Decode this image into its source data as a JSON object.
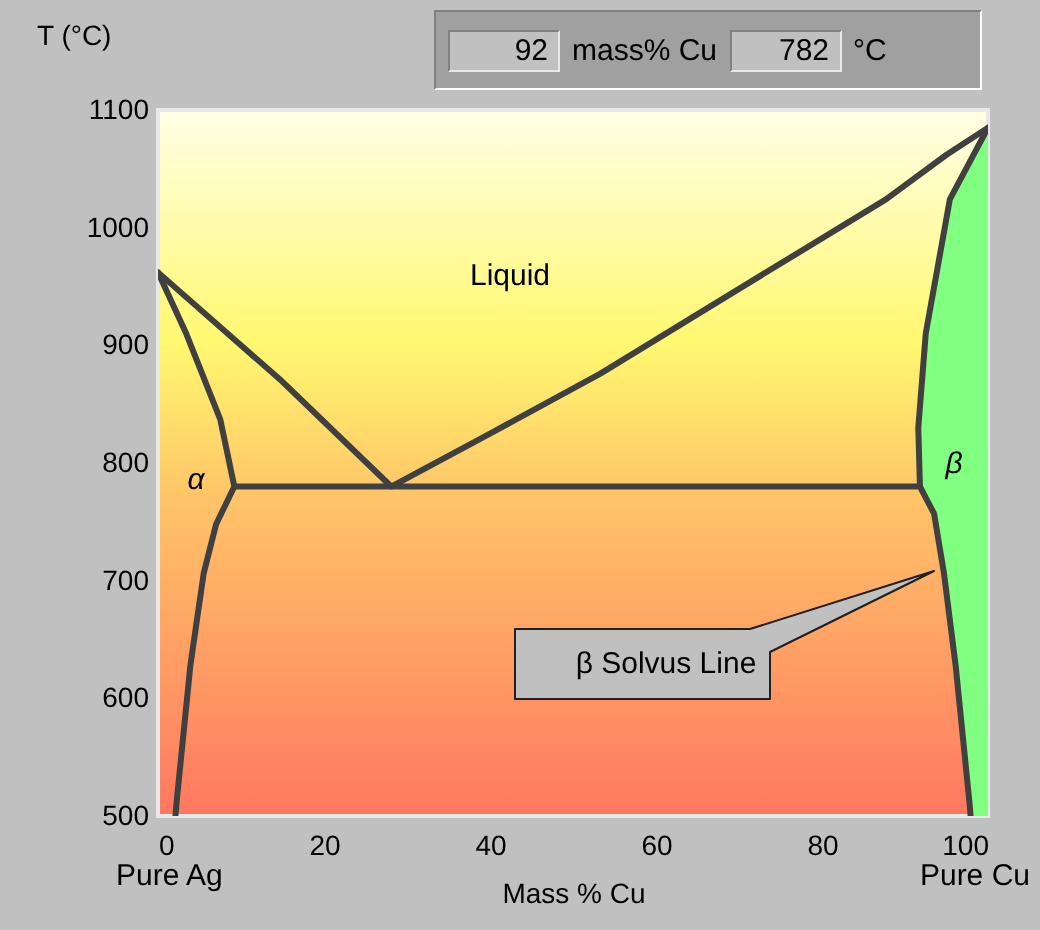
{
  "chart_data": {
    "type": "line",
    "xlabel": "Mass % Cu",
    "ylabel": "T (°C)",
    "xlim": [
      0,
      100
    ],
    "xticks": [
      0,
      20,
      40,
      60,
      80,
      100
    ],
    "ylim": [
      500,
      1100
    ],
    "yticks": [
      500,
      600,
      700,
      800,
      900,
      1000,
      1100
    ],
    "series": [
      {
        "type": "area",
        "color": "#80ff80",
        "x": [
          100,
          95.4,
          92.5,
          91.6,
          91.8,
          93.5,
          94.7,
          96.1,
          97.8,
          97.9
        ],
        "values": [
          1085,
          1024,
          910,
          830,
          780,
          757,
          706,
          628,
          509,
          500
        ]
      },
      {
        "color": "#404040",
        "x": [
          0,
          14.7,
          28.1,
          40,
          53.3,
          70,
          87.7,
          95,
          100
        ],
        "values": [
          962,
          871,
          780,
          825,
          876,
          948,
          1024,
          1062,
          1085
        ]
      },
      {
        "color": "#404040",
        "x": [
          0,
          3.4,
          7.5,
          9.2,
          7.0,
          5.5,
          3.9,
          2.2,
          2.1
        ],
        "values": [
          962,
          910,
          837,
          780,
          748,
          706,
          628,
          509,
          500
        ]
      },
      {
        "color": "#404040",
        "x": [
          9.2,
          91.8
        ],
        "values": [
          780,
          780
        ]
      }
    ],
    "annotations": [
      "92",
      "mass% Cu",
      "782",
      "°C",
      "Liquid",
      "α",
      "β",
      "Pure Ag",
      "Pure Cu",
      "β Solvus Line"
    ]
  }
}
